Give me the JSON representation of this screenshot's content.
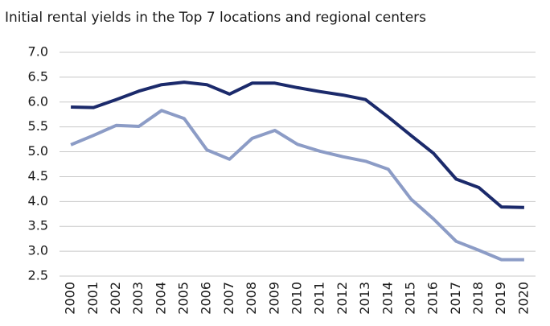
{
  "chart_data": {
    "type": "line",
    "title": "Initial rental yields in the Top 7 locations and regional centers",
    "categories": [
      "2000",
      "2001",
      "2002",
      "2003",
      "2004",
      "2005",
      "2006",
      "2007",
      "2008",
      "2009",
      "2010",
      "2011",
      "2012",
      "2013",
      "2014",
      "2015",
      "2016",
      "2017",
      "2018",
      "2019",
      "2020"
    ],
    "series": [
      {
        "color": "#1b2a6b",
        "values": [
          5.9,
          5.89,
          6.05,
          6.22,
          6.35,
          6.4,
          6.35,
          6.16,
          6.38,
          6.38,
          6.29,
          6.21,
          6.14,
          6.05,
          5.7,
          5.33,
          4.97,
          4.45,
          4.28,
          3.89,
          3.88
        ]
      },
      {
        "color": "#8c9cc6",
        "values": [
          5.14,
          5.33,
          5.53,
          5.51,
          5.83,
          5.67,
          5.04,
          4.85,
          5.27,
          5.43,
          5.15,
          5.01,
          4.9,
          4.81,
          4.65,
          4.05,
          3.65,
          3.2,
          3.02,
          2.83,
          2.83
        ]
      }
    ],
    "ylim": [
      2.5,
      7.0
    ],
    "yticks": [
      {
        "value": 2.5,
        "label": "2.5"
      },
      {
        "value": 3,
        "label": "3.0"
      },
      {
        "value": 3.5,
        "label": "3.5"
      },
      {
        "value": 4,
        "label": "4.0"
      },
      {
        "value": 4.5,
        "label": "4.5"
      },
      {
        "value": 5,
        "label": "5.0"
      },
      {
        "value": 5.5,
        "label": "5.5"
      },
      {
        "value": 6,
        "label": "6.0"
      },
      {
        "value": 6.5,
        "label": "6.5"
      },
      {
        "value": 7,
        "label": "7.0"
      }
    ],
    "grid": true
  }
}
